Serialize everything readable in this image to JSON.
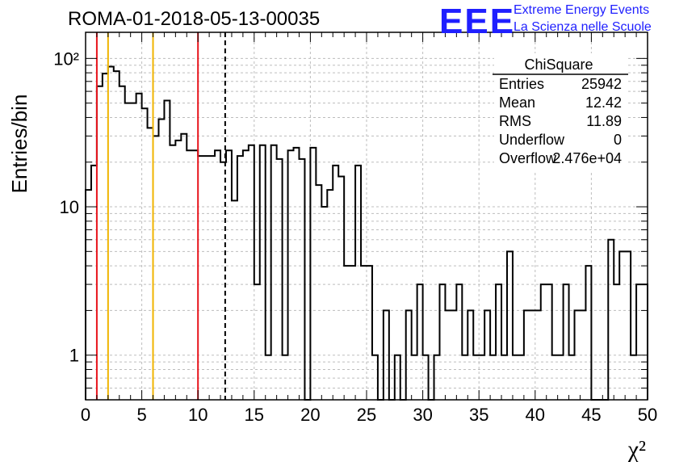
{
  "header": {
    "title": "ROMA-01-2018-05-13-00035",
    "logo_mark": "EEE",
    "logo_line1": "Extreme Energy Events",
    "logo_line2": "La Scienza nelle Scuole"
  },
  "stats_box": {
    "name": "ChiSquare",
    "rows": [
      {
        "label": "Entries",
        "value": "25942"
      },
      {
        "label": "Mean",
        "value": "12.42"
      },
      {
        "label": "RMS",
        "value": "11.89"
      },
      {
        "label": "Underflow",
        "value": "0"
      },
      {
        "label": "Overflow",
        "value": "2.476e+04"
      }
    ]
  },
  "colors": {
    "histogram": "#000000",
    "red_line": "#e8141c",
    "yellow_line": "#f0b400",
    "grid": "#bdbdbd",
    "logo": "#1f1fff"
  },
  "chart_data": {
    "type": "histogram",
    "xlabel": "χ²",
    "ylabel": "Entries/bin",
    "xlim": [
      0,
      50
    ],
    "ylim": [
      0.5,
      150
    ],
    "yscale": "log",
    "grid": true,
    "bin_width": 0.5,
    "x_ticks": [
      0,
      5,
      10,
      15,
      20,
      25,
      30,
      35,
      40,
      45,
      50
    ],
    "y_tick_labels": [
      {
        "value": 1,
        "label": "1"
      },
      {
        "value": 10,
        "label": "10"
      },
      {
        "value": 100,
        "label": "10²"
      }
    ],
    "bin_contents": [
      13,
      19,
      65,
      79,
      88,
      82,
      65,
      50,
      50,
      58,
      46,
      34,
      30,
      39,
      52,
      26,
      28,
      31,
      24,
      24,
      22,
      22,
      22,
      24,
      20,
      24,
      11,
      22,
      24,
      26,
      3,
      26,
      1,
      26,
      21,
      1,
      24,
      25,
      21,
      0,
      25,
      14,
      10,
      13,
      19,
      16,
      4,
      4,
      19,
      4,
      4,
      1,
      0,
      2,
      0,
      1,
      0,
      2,
      1,
      3,
      1,
      0,
      1,
      3,
      2,
      2,
      3,
      1,
      2,
      1,
      1,
      2,
      1,
      3,
      1,
      5,
      1,
      1,
      2,
      2,
      2,
      3,
      3,
      1,
      1,
      3,
      1,
      2,
      2,
      4,
      0,
      0,
      0,
      6,
      3,
      5,
      5,
      1,
      3,
      3
    ],
    "vertical_lines": [
      {
        "x": 1,
        "color": "red",
        "style": "solid"
      },
      {
        "x": 2,
        "color": "yellow",
        "style": "solid"
      },
      {
        "x": 6,
        "color": "yellow",
        "style": "solid"
      },
      {
        "x": 10,
        "color": "red",
        "style": "solid"
      },
      {
        "x": 12.42,
        "color": "black",
        "style": "dashed"
      }
    ]
  }
}
